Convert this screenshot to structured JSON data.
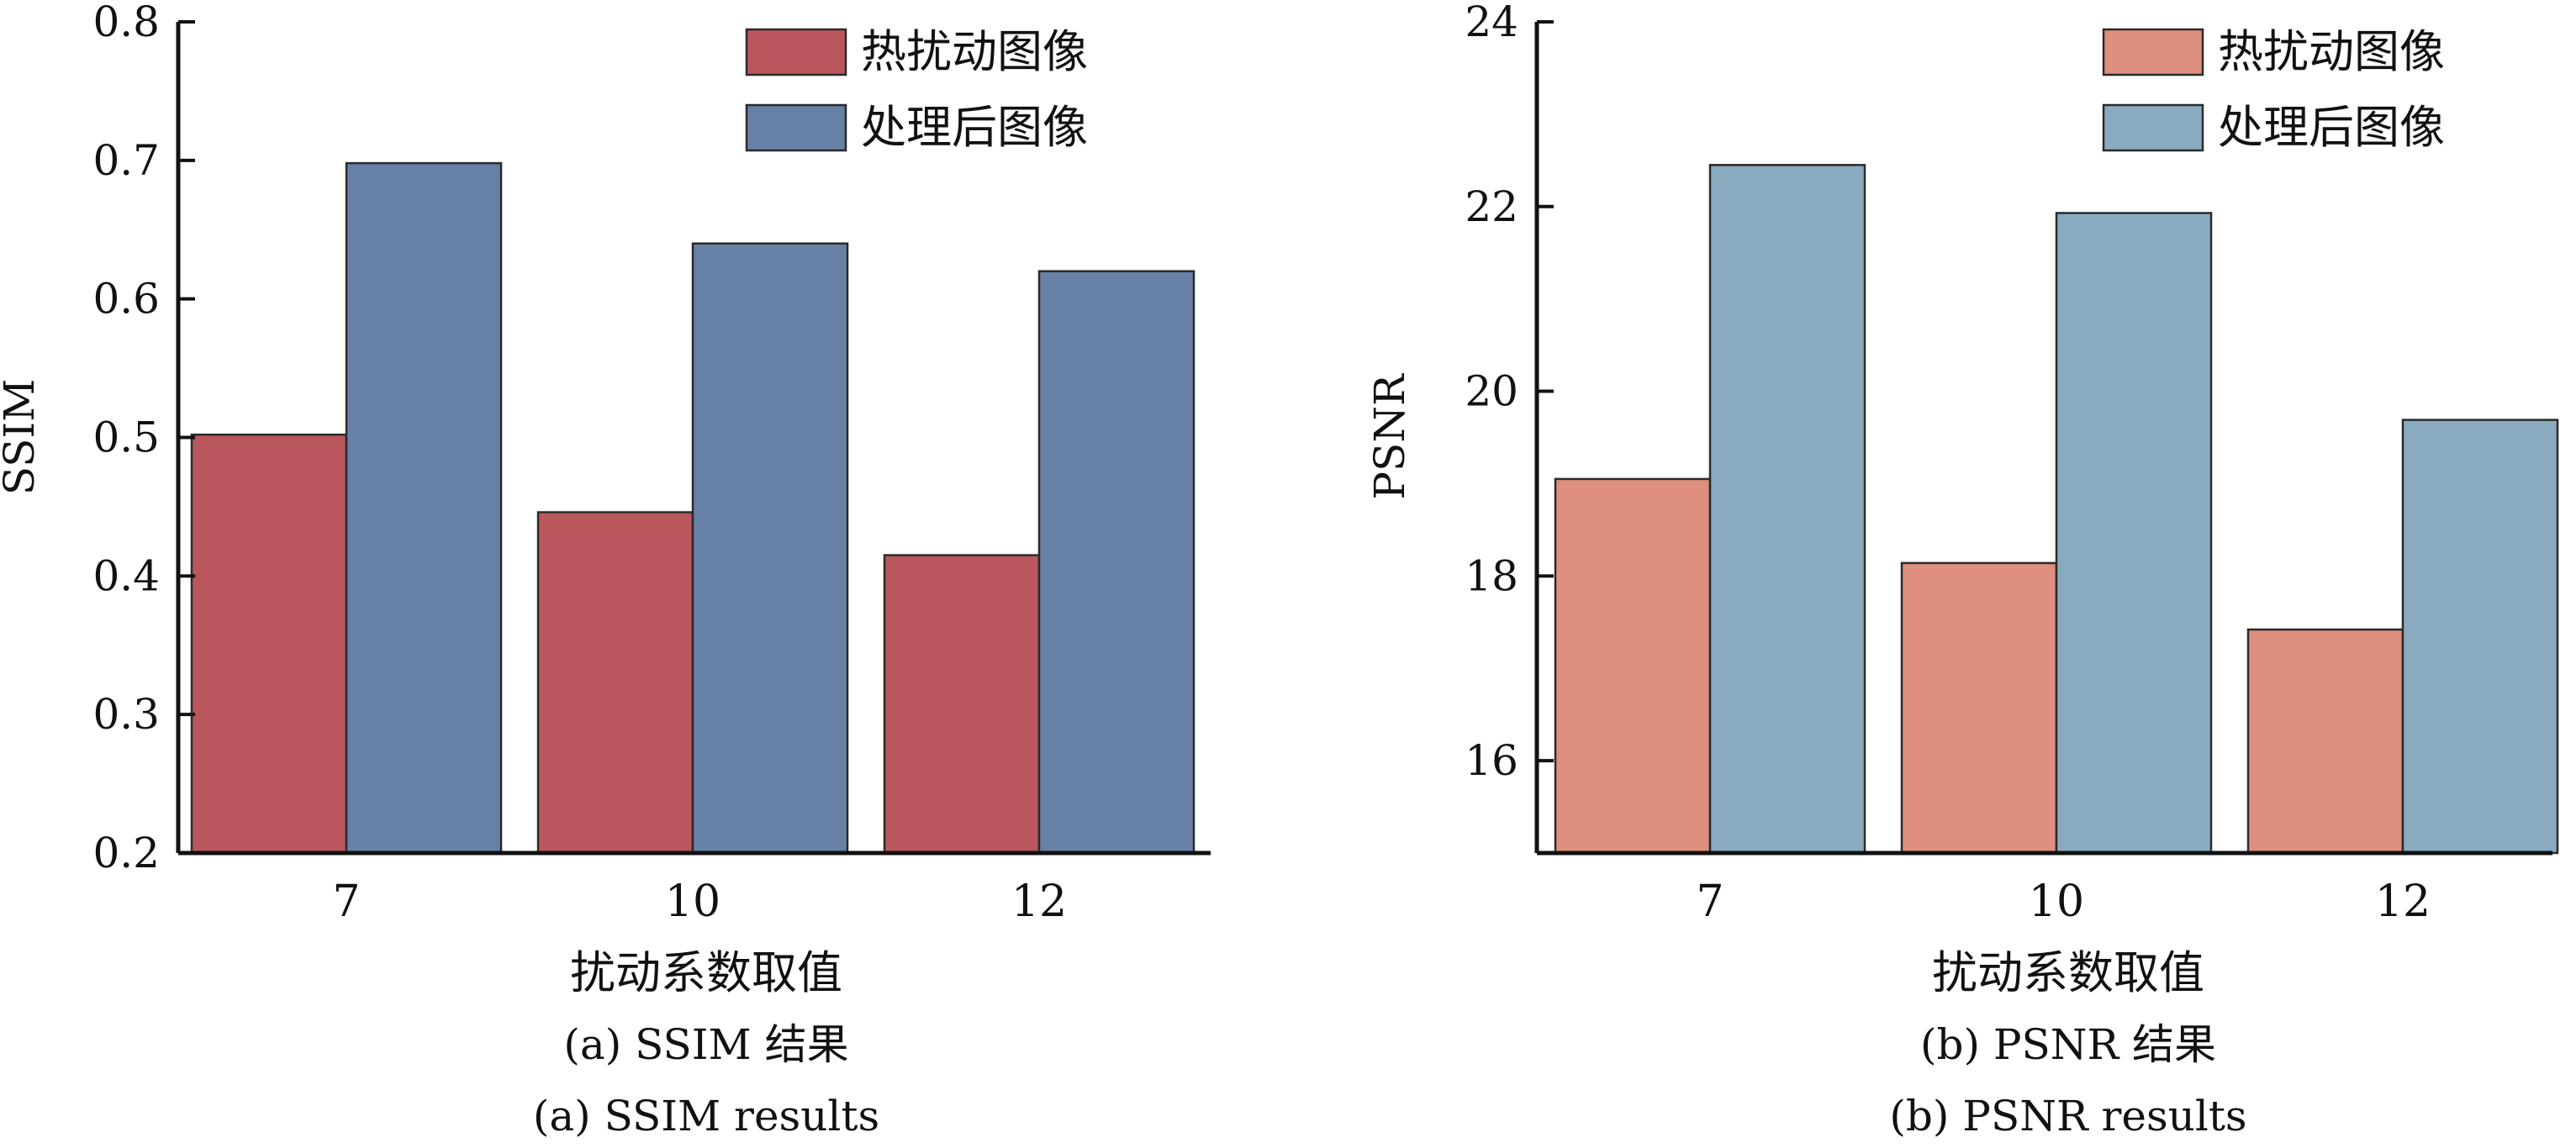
{
  "chart_data": [
    {
      "type": "bar",
      "categories": [
        "7",
        "10",
        "12"
      ],
      "series": [
        {
          "name": "热扰动图像",
          "values": [
            0.502,
            0.446,
            0.415
          ],
          "color": "#b9575d"
        },
        {
          "name": "处理后图像",
          "values": [
            0.698,
            0.64,
            0.62
          ],
          "color": "#6780a6"
        }
      ],
      "ylabel": "SSIM",
      "xlabel": "扰动系数取值",
      "ylim": [
        0.2,
        0.8
      ],
      "yticks": [
        "0.2",
        "0.3",
        "0.4",
        "0.5",
        "0.6",
        "0.7",
        "0.8"
      ],
      "caption_cn": "(a) SSIM 结果",
      "caption_en": "(a) SSIM results",
      "legend_position": "top-right",
      "grid": false
    },
    {
      "type": "bar",
      "categories": [
        "7",
        "10",
        "12"
      ],
      "series": [
        {
          "name": "热扰动图像",
          "values": [
            19.05,
            18.14,
            17.42
          ],
          "color": "#de8f7d"
        },
        {
          "name": "处理后图像",
          "values": [
            22.45,
            21.93,
            19.69
          ],
          "color": "#8aabbf"
        }
      ],
      "ylabel": "PSNR",
      "xlabel": "扰动系数取值",
      "ylim": [
        15,
        24
      ],
      "yticks": [
        "16",
        "18",
        "20",
        "22",
        "24"
      ],
      "caption_cn": "(b) PSNR 结果",
      "caption_en": "(b) PSNR results",
      "legend_position": "top-right",
      "grid": false
    }
  ]
}
